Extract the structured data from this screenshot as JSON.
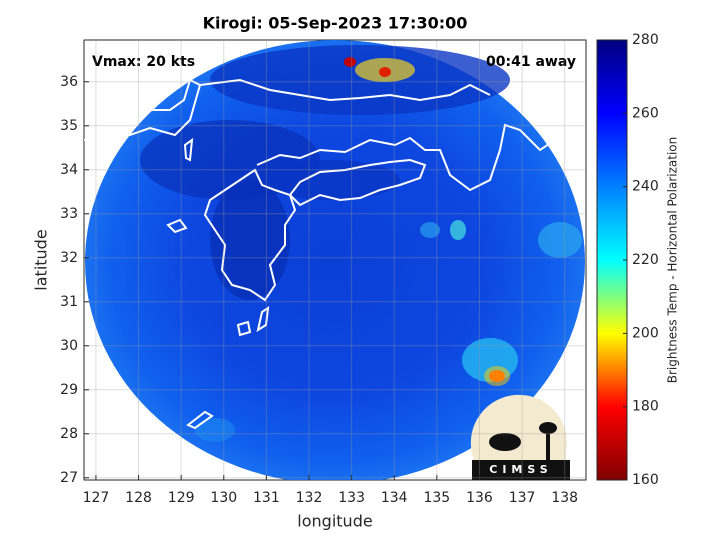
{
  "chart_data": {
    "type": "map",
    "title": "Kirogi: 05-Sep-2023 17:30:00",
    "annotations": [
      "Vmax: 20 kts",
      "00:41 away"
    ],
    "xlabel": "longitude",
    "ylabel": "latitude",
    "xlim": [
      126.72,
      138.5
    ],
    "ylim": [
      26.95,
      36.95
    ],
    "xticks": [
      127,
      128,
      129,
      130,
      131,
      132,
      133,
      134,
      135,
      136,
      137,
      138
    ],
    "yticks": [
      27,
      28,
      29,
      30,
      31,
      32,
      33,
      34,
      35,
      36
    ],
    "grid": true,
    "colorbar": {
      "label": "Brightness Temp - Horizontal Polarization",
      "clim": [
        160,
        280
      ],
      "ticks": [
        160,
        180,
        200,
        220,
        240,
        260,
        280
      ],
      "colormap": [
        "#800000",
        "#ff0000",
        "#ffff00",
        "#00ffff",
        "#0080ff",
        "#0000ff",
        "#000080"
      ]
    },
    "logo_text": "CIMSS"
  }
}
